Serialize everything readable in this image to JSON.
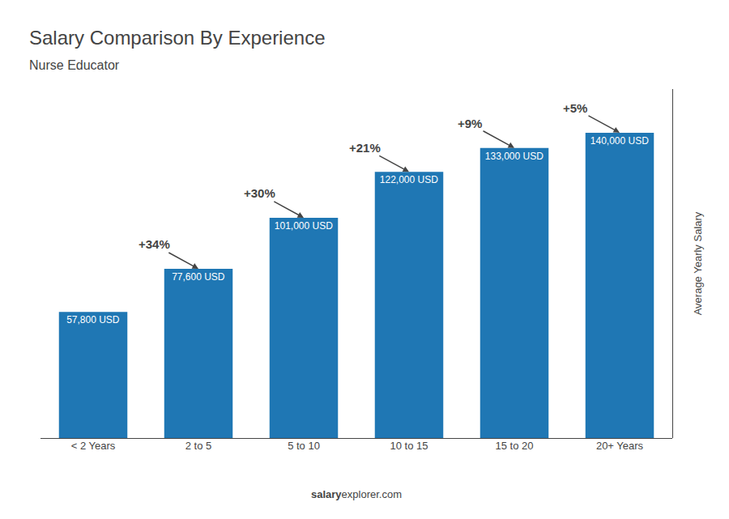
{
  "chart_data": {
    "type": "bar",
    "title": "Salary Comparison By Experience",
    "subtitle": "Nurse Educator",
    "categories": [
      "< 2 Years",
      "2 to 5",
      "5 to 10",
      "10 to 15",
      "15 to 20",
      "20+ Years"
    ],
    "values": [
      57800,
      77600,
      101000,
      122000,
      133000,
      140000
    ],
    "value_labels": [
      "57,800 USD",
      "77,600 USD",
      "101,000 USD",
      "122,000 USD",
      "133,000 USD",
      "140,000 USD"
    ],
    "data_labels": true,
    "annotations": [
      "+34%",
      "+30%",
      "+21%",
      "+9%",
      "+5%"
    ],
    "ylabel": "Average Yearly Salary",
    "footer": [
      "salary",
      "explorer.com"
    ],
    "ylim": [
      0,
      160000
    ],
    "tick_labels": "x",
    "grid": false
  }
}
